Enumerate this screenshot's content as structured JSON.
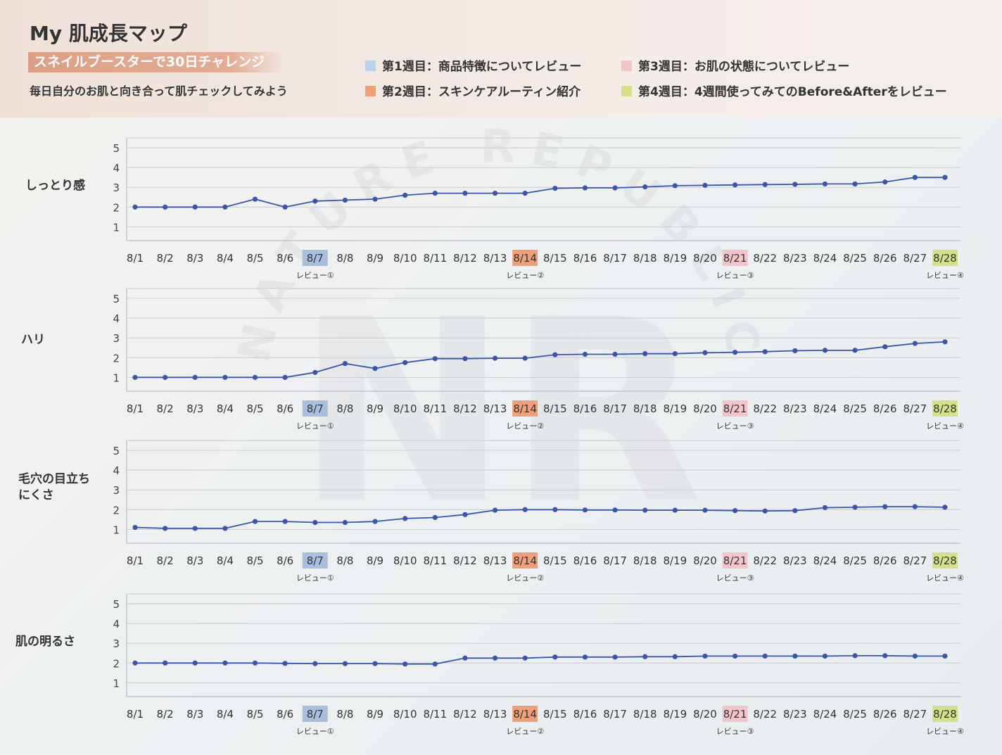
{
  "header": {
    "title": "My 肌成長マップ",
    "subtitle": "スネイルブースターで30日チャレンジ",
    "tagline": "毎日自分のお肌と向き合って肌チェックしてみよう"
  },
  "legend": [
    {
      "label": "第1週目：商品特徴についてレビュー",
      "color": "#bcd2ea"
    },
    {
      "label": "第2週目：スキンケアルーティン紹介",
      "color": "#ef9f79"
    },
    {
      "label": "第3週目：お肌の状態についてレビュー",
      "color": "#f1c5c9"
    },
    {
      "label": "第4週目：4週間使ってみてのBefore&Afterをレビュー",
      "color": "#d4e08a"
    }
  ],
  "watermark": {
    "text": "NATURE REPUBLIC",
    "monogram": "NR"
  },
  "colors": {
    "line": "#3a56a8",
    "grid": "#c9ccd0"
  },
  "review_labels": {
    "8/7": "レビュー①",
    "8/14": "レビュー②",
    "8/21": "レビュー③",
    "8/28": "レビュー④"
  },
  "highlight_colors": {
    "8/7": "#a9bfdd",
    "8/14": "#ef9f79",
    "8/21": "#f1c5c9",
    "8/28": "#d4e08a"
  },
  "chart_data": [
    {
      "type": "line",
      "title": "しっとり感",
      "categories": [
        "8/1",
        "8/2",
        "8/3",
        "8/4",
        "8/5",
        "8/6",
        "8/7",
        "8/8",
        "8/9",
        "8/10",
        "8/11",
        "8/12",
        "8/13",
        "8/14",
        "8/15",
        "8/16",
        "8/17",
        "8/18",
        "8/19",
        "8/20",
        "8/21",
        "8/22",
        "8/23",
        "8/24",
        "8/25",
        "8/26",
        "8/27",
        "8/28"
      ],
      "values": [
        2,
        2,
        2,
        2,
        2.4,
        2,
        2.3,
        2.35,
        2.4,
        2.6,
        2.7,
        2.7,
        2.7,
        2.7,
        2.95,
        2.97,
        2.97,
        3.02,
        3.08,
        3.1,
        3.12,
        3.14,
        3.15,
        3.17,
        3.17,
        3.27,
        3.5,
        3.5
      ],
      "yticks": [
        1,
        2,
        3,
        4,
        5
      ],
      "ylim": [
        0.3,
        5.5
      ],
      "grid": true
    },
    {
      "type": "line",
      "title": "ハリ",
      "categories": [
        "8/1",
        "8/2",
        "8/3",
        "8/4",
        "8/5",
        "8/6",
        "8/7",
        "8/8",
        "8/9",
        "8/10",
        "8/11",
        "8/12",
        "8/13",
        "8/14",
        "8/15",
        "8/16",
        "8/17",
        "8/18",
        "8/19",
        "8/20",
        "8/21",
        "8/22",
        "8/23",
        "8/24",
        "8/25",
        "8/26",
        "8/27",
        "8/28"
      ],
      "values": [
        1,
        1,
        1,
        1,
        1,
        1,
        1.25,
        1.7,
        1.45,
        1.75,
        1.95,
        1.95,
        1.97,
        1.97,
        2.15,
        2.17,
        2.17,
        2.2,
        2.2,
        2.25,
        2.27,
        2.3,
        2.35,
        2.37,
        2.37,
        2.55,
        2.72,
        2.8
      ],
      "yticks": [
        1,
        2,
        3,
        4,
        5
      ],
      "ylim": [
        0.3,
        5.5
      ],
      "grid": true
    },
    {
      "type": "line",
      "title": "毛穴の目立ちにくさ",
      "categories": [
        "8/1",
        "8/2",
        "8/3",
        "8/4",
        "8/5",
        "8/6",
        "8/7",
        "8/8",
        "8/9",
        "8/10",
        "8/11",
        "8/12",
        "8/13",
        "8/14",
        "8/15",
        "8/16",
        "8/17",
        "8/18",
        "8/19",
        "8/20",
        "8/21",
        "8/22",
        "8/23",
        "8/24",
        "8/25",
        "8/26",
        "8/27",
        "8/28"
      ],
      "values": [
        1.1,
        1.05,
        1.05,
        1.05,
        1.4,
        1.4,
        1.35,
        1.35,
        1.4,
        1.55,
        1.6,
        1.75,
        1.97,
        2.0,
        2.0,
        1.98,
        1.98,
        1.97,
        1.97,
        1.97,
        1.95,
        1.93,
        1.95,
        2.1,
        2.12,
        2.15,
        2.15,
        2.12
      ],
      "yticks": [
        1,
        2,
        3,
        4,
        5
      ],
      "ylim": [
        0.3,
        5.5
      ],
      "grid": true
    },
    {
      "type": "line",
      "title": "肌の明るさ",
      "categories": [
        "8/1",
        "8/2",
        "8/3",
        "8/4",
        "8/5",
        "8/6",
        "8/7",
        "8/8",
        "8/9",
        "8/10",
        "8/11",
        "8/12",
        "8/13",
        "8/14",
        "8/15",
        "8/16",
        "8/17",
        "8/18",
        "8/19",
        "8/20",
        "8/21",
        "8/22",
        "8/23",
        "8/24",
        "8/25",
        "8/26",
        "8/27",
        "8/28"
      ],
      "values": [
        2,
        2,
        2,
        2,
        2,
        1.98,
        1.97,
        1.97,
        1.97,
        1.95,
        1.95,
        2.25,
        2.25,
        2.25,
        2.3,
        2.3,
        2.3,
        2.32,
        2.32,
        2.35,
        2.35,
        2.35,
        2.35,
        2.35,
        2.37,
        2.37,
        2.35,
        2.35
      ],
      "yticks": [
        1,
        2,
        3,
        4,
        5
      ],
      "ylim": [
        0.3,
        5.5
      ],
      "grid": true
    }
  ]
}
